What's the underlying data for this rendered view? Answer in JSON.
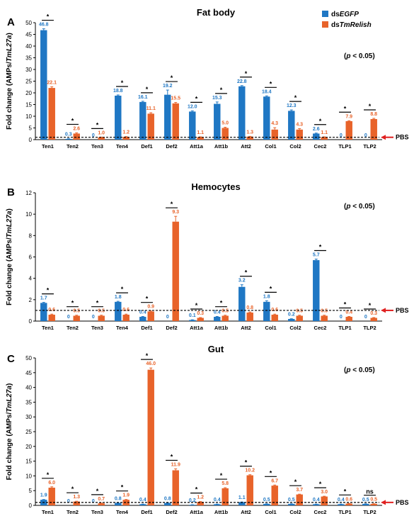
{
  "colors": {
    "egfp": "#1f77c4",
    "relish": "#e8632a",
    "axis": "#000000",
    "pbs_arrow": "#e02020"
  },
  "legend": {
    "egfp_prefix": "ds",
    "egfp_name": "EGFP",
    "relish_prefix": "ds",
    "relish_name": "TmRelish"
  },
  "ylabel": {
    "prefix": "Fold change (AMPs/",
    "italic": "TmL27a",
    "suffix": ")"
  },
  "pbs_label": "PBS",
  "chart_data": [
    {
      "type": "bar",
      "letter": "A",
      "title": "Fat body",
      "pnote": "(p < 0.05)",
      "ylim": [
        0,
        50
      ],
      "yticks": [
        0,
        5,
        10,
        15,
        20,
        25,
        30,
        35,
        40,
        45,
        50
      ],
      "ytick_labels": [
        "0",
        "5",
        "10",
        "15",
        "20",
        "25",
        "30",
        "35",
        "40",
        "45",
        "50"
      ],
      "pbs_level": 1,
      "categories": [
        "Ten1",
        "Ten2",
        "Ten3",
        "Ten4",
        "Def1",
        "Def2",
        "Att1a",
        "Att1b",
        "Att2",
        "Col1",
        "Col2",
        "Cec2",
        "TLP1",
        "TLP2"
      ],
      "series": [
        {
          "name": "dsEGFP",
          "values": [
            46.8,
            0.3,
            0,
            18.8,
            16.1,
            19.2,
            12.0,
            15.3,
            22.8,
            18.4,
            12.3,
            2.6,
            0,
            0
          ],
          "labels": [
            "46.8",
            "0.3",
            "0",
            "18.8",
            "16.1",
            "19.2",
            "12.0",
            "15.3",
            "22.8",
            "18.4",
            "12.3",
            "2.6",
            "0",
            "0"
          ],
          "errors": [
            0.6,
            0.1,
            0,
            0.3,
            0.3,
            2.0,
            0.3,
            0.8,
            0.3,
            0.3,
            0.4,
            0.2,
            0,
            0
          ]
        },
        {
          "name": "dsTmRelish",
          "values": [
            22.1,
            2.6,
            1.0,
            1.2,
            11.1,
            15.5,
            1.1,
            5.0,
            1.3,
            4.3,
            4.3,
            1.1,
            7.9,
            8.8
          ],
          "labels": [
            "22.1",
            "2.6",
            "1.0",
            "1.2",
            "11.1",
            "15.5",
            "1.1",
            "5.0",
            "1.3",
            "4.3",
            "4.3",
            "1.1",
            "7.9",
            "8.8"
          ],
          "errors": [
            0.5,
            0.3,
            0.1,
            0.1,
            0.4,
            0.4,
            0.1,
            0.3,
            0.1,
            0.8,
            0.4,
            0.1,
            0.2,
            0.3
          ]
        }
      ],
      "significance": [
        "*",
        "*",
        "*",
        "*",
        "*",
        "*",
        "*",
        "*",
        "*",
        "*",
        "*",
        "*",
        "*",
        "*"
      ]
    },
    {
      "type": "bar",
      "letter": "B",
      "title": "Hemocytes",
      "pnote": "(p < 0.05)",
      "ylim": [
        0,
        12
      ],
      "yticks": [
        0,
        2,
        4,
        6,
        8,
        10,
        12
      ],
      "ytick_labels": [
        "0",
        "2",
        "4",
        "6",
        "8",
        "10",
        "12"
      ],
      "pbs_level": 1,
      "categories": [
        "Ten1",
        "Ten2",
        "Ten3",
        "Ten4",
        "Def1",
        "Def2",
        "Att1a",
        "Att1b",
        "Att2",
        "Col1",
        "Col2",
        "Cec2",
        "TLP1",
        "TLP2"
      ],
      "series": [
        {
          "name": "dsEGFP",
          "values": [
            1.7,
            0,
            0,
            1.8,
            0.4,
            0,
            0.1,
            0.4,
            3.2,
            1.8,
            0.2,
            5.7,
            0,
            0
          ],
          "labels": [
            "1.7",
            "0",
            "0",
            "1.8",
            "0.4",
            "0",
            "0.1",
            "0.4",
            "3.2",
            "1.8",
            "0.2",
            "5.7",
            "0",
            "0"
          ],
          "errors": [
            0.05,
            0,
            0,
            0.05,
            0.03,
            0,
            0.02,
            0.03,
            0.2,
            0.1,
            0.02,
            0.1,
            0,
            0
          ]
        },
        {
          "name": "dsTmRelish",
          "values": [
            0.6,
            0.5,
            0.5,
            0.6,
            0.9,
            9.3,
            0.3,
            0.5,
            0.8,
            0.6,
            0.5,
            0.5,
            0.4,
            0.3
          ],
          "labels": [
            "0.6",
            "0.5",
            "0.5",
            "0.6",
            "0.9",
            "9.3",
            "0.3",
            "0.5",
            "0.8",
            "0.6",
            "0.5",
            "0.5",
            "0.4",
            "0.3"
          ],
          "errors": [
            0.05,
            0.05,
            0.05,
            0.05,
            0.05,
            0.5,
            0.03,
            0.05,
            0.05,
            0.05,
            0.05,
            0.05,
            0.03,
            0.03
          ]
        }
      ],
      "significance": [
        "*",
        "*",
        "*",
        "*",
        "*",
        "*",
        "*",
        "*",
        "*",
        "*",
        "",
        "*",
        "*",
        "*"
      ]
    },
    {
      "type": "bar",
      "letter": "C",
      "title": "Gut",
      "pnote": "(p < 0.05)",
      "ylim": [
        0,
        50
      ],
      "yticks": [
        0,
        5,
        10,
        15,
        20,
        25,
        30,
        35,
        40,
        45,
        50
      ],
      "ytick_labels": [
        "0",
        "5",
        "10",
        "15",
        "20",
        "25",
        "30",
        "35",
        "40",
        "45",
        "50"
      ],
      "pbs_level": 1,
      "categories": [
        "Ten1",
        "Ten2",
        "Ten3",
        "Ten4",
        "Def1",
        "Def2",
        "Att1a",
        "Att1b",
        "Att2",
        "Col1",
        "Col2",
        "Cec2",
        "TLP1",
        "TLP2"
      ],
      "series": [
        {
          "name": "dsEGFP",
          "values": [
            1.9,
            0,
            0,
            0.8,
            0.4,
            0.8,
            0.2,
            0.4,
            1.1,
            0.5,
            0.5,
            0.4,
            0.4,
            0.5
          ],
          "labels": [
            "1.9",
            "0",
            "0",
            "0.8",
            "0.4",
            "0.8",
            "0.2",
            "0.4",
            "1.1",
            "0.5",
            "0.5",
            "0.4",
            "0.4",
            "0.5"
          ],
          "errors": [
            0.1,
            0,
            0,
            0.05,
            0.03,
            0.05,
            0.02,
            0.03,
            0.05,
            0.03,
            0.03,
            0.03,
            0.03,
            0.03
          ]
        },
        {
          "name": "dsTmRelish",
          "values": [
            6.0,
            1.3,
            0.7,
            1.9,
            46.0,
            11.9,
            1.2,
            5.8,
            10.2,
            6.7,
            3.7,
            3.0,
            0.6,
            0.5
          ],
          "labels": [
            "6.0",
            "1.3",
            "0.7",
            "1.9",
            "46.0",
            "11.9",
            "1.2",
            "5.8",
            "10.2",
            "6.7",
            "3.7",
            "3.0",
            "0.6",
            "0.5"
          ],
          "errors": [
            0.3,
            0.1,
            0.05,
            0.1,
            0.6,
            0.5,
            0.1,
            0.2,
            0.2,
            0.2,
            0.1,
            0.1,
            0.05,
            0.05
          ]
        }
      ],
      "significance": [
        "*",
        "*",
        "*",
        "*",
        "*",
        "*",
        "*",
        "*",
        "*",
        "*",
        "*",
        "*",
        "*",
        "ns"
      ]
    }
  ]
}
